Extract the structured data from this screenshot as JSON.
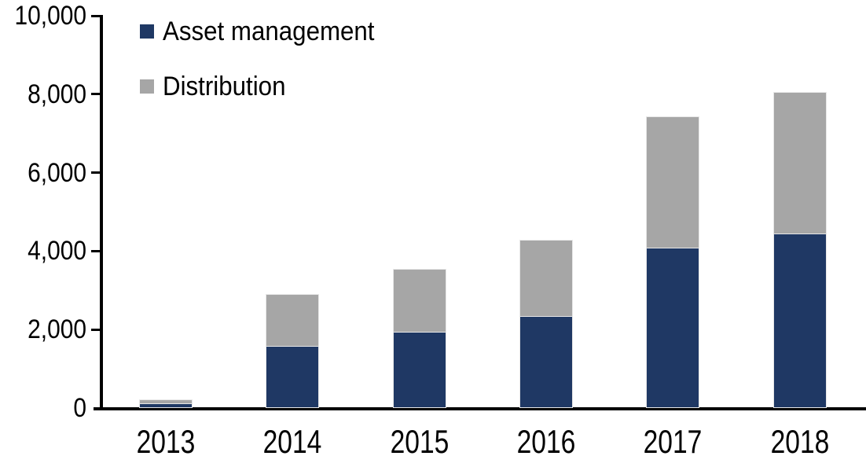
{
  "chart_data": {
    "type": "bar",
    "stacked": true,
    "title": "",
    "xlabel": "",
    "ylabel": "",
    "categories": [
      "2013",
      "2014",
      "2015",
      "2016",
      "2017",
      "2018"
    ],
    "series": [
      {
        "name": "Asset management",
        "color": "#1F3864",
        "values": [
          80,
          1550,
          1900,
          2300,
          4050,
          4400
        ]
      },
      {
        "name": "Distribution",
        "color": "#A6A6A6",
        "values": [
          100,
          1320,
          1600,
          1950,
          3350,
          3600
        ]
      }
    ],
    "totals": [
      180,
      2870,
      3500,
      4250,
      7400,
      8000
    ],
    "ylim": [
      0,
      10000
    ],
    "yticks": [
      0,
      2000,
      4000,
      6000,
      8000,
      10000
    ],
    "ytick_labels": [
      "0",
      "2,000",
      "4,000",
      "6,000",
      "8,000",
      "10,000"
    ],
    "grid": false,
    "legend_position": "top-left",
    "axis_color": "#000000",
    "background_color": "#FFFFFF"
  }
}
